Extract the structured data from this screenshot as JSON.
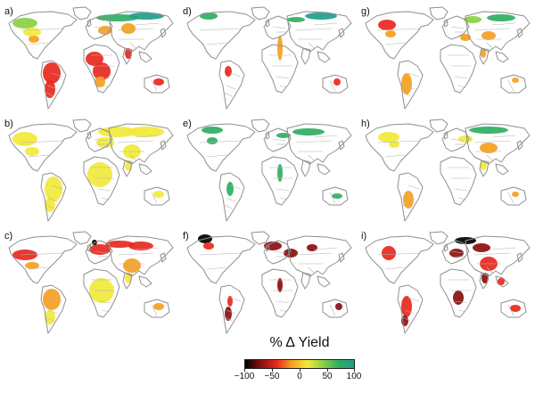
{
  "panels": [
    {
      "label": "a)"
    },
    {
      "label": "d)"
    },
    {
      "label": "g)"
    },
    {
      "label": "b)"
    },
    {
      "label": "e)"
    },
    {
      "label": "h)"
    },
    {
      "label": "c)"
    },
    {
      "label": "f)"
    },
    {
      "label": "i)"
    }
  ],
  "legend": {
    "title": "% Δ Yield",
    "ticks": [
      "−100",
      "−50",
      "0",
      "50",
      "100"
    ],
    "colors": [
      "#000000",
      "#8a0f0f",
      "#e8281e",
      "#f5a020",
      "#f2e93a",
      "#8ccf43",
      "#2fae62",
      "#1f9e8c"
    ]
  },
  "colors": {
    "land": "#ffffff",
    "border": "#b4b4b4",
    "coast": "#8f8f8f"
  }
}
